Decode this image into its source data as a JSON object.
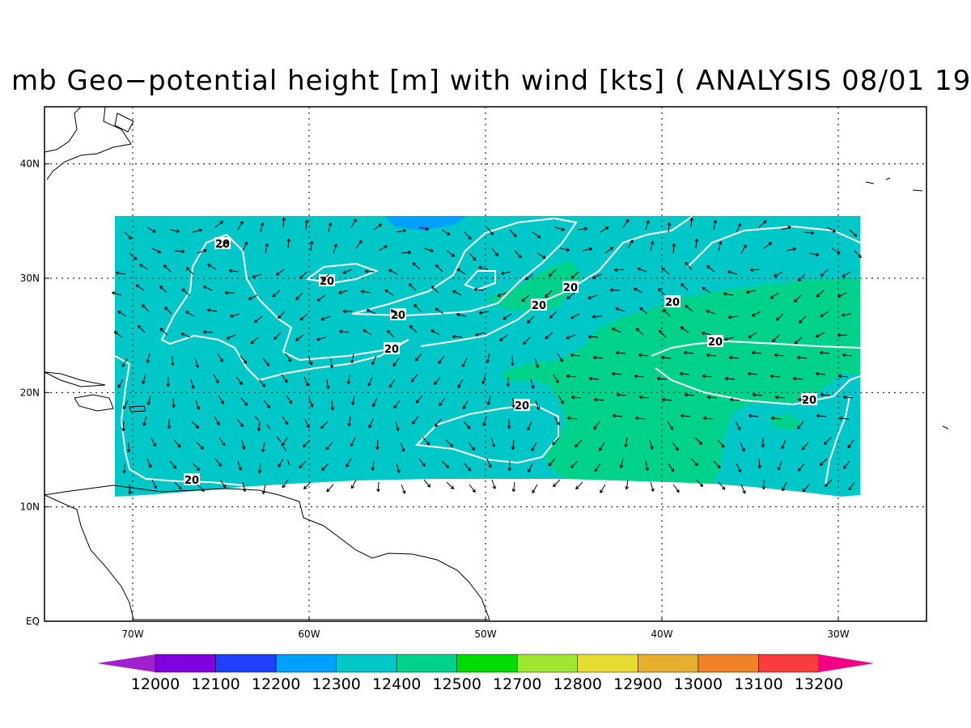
{
  "title": "mb Geo−potential height [m] with wind [kts] ( ANALYSIS 08/01 19",
  "map": {
    "lon_range": [
      -75,
      -25
    ],
    "lat_range": [
      0,
      45
    ],
    "lon_ticks": [
      {
        "value": -70,
        "label": "70W"
      },
      {
        "value": -60,
        "label": "60W"
      },
      {
        "value": -50,
        "label": "50W"
      },
      {
        "value": -40,
        "label": "40W"
      },
      {
        "value": -30,
        "label": "30W"
      }
    ],
    "lat_ticks": [
      {
        "value": 0,
        "label": "EQ"
      },
      {
        "value": 10,
        "label": "10N"
      },
      {
        "value": 20,
        "label": "20N"
      },
      {
        "value": 30,
        "label": "30N"
      },
      {
        "value": 40,
        "label": "40N"
      }
    ],
    "grid": "dotted",
    "contour_label": "20",
    "contour_labels_count": 11
  },
  "colorbar": {
    "labels": [
      "12000",
      "12100",
      "12200",
      "12300",
      "12400",
      "12500",
      "12700",
      "12800",
      "12900",
      "13000",
      "13100",
      "13200"
    ],
    "colors": [
      "#a020d0",
      "#8000e0",
      "#2040ff",
      "#00a0ff",
      "#00c8c8",
      "#00d28c",
      "#00dc00",
      "#a0e632",
      "#e6dc32",
      "#e6af2d",
      "#f08228",
      "#fa3c3c",
      "#f00082"
    ]
  },
  "colors": {
    "field_base": "#00c8c8",
    "field_high": "#00d28c",
    "field_low": "#00a0ff",
    "contour": "#ffffff",
    "coast": "#000000"
  }
}
